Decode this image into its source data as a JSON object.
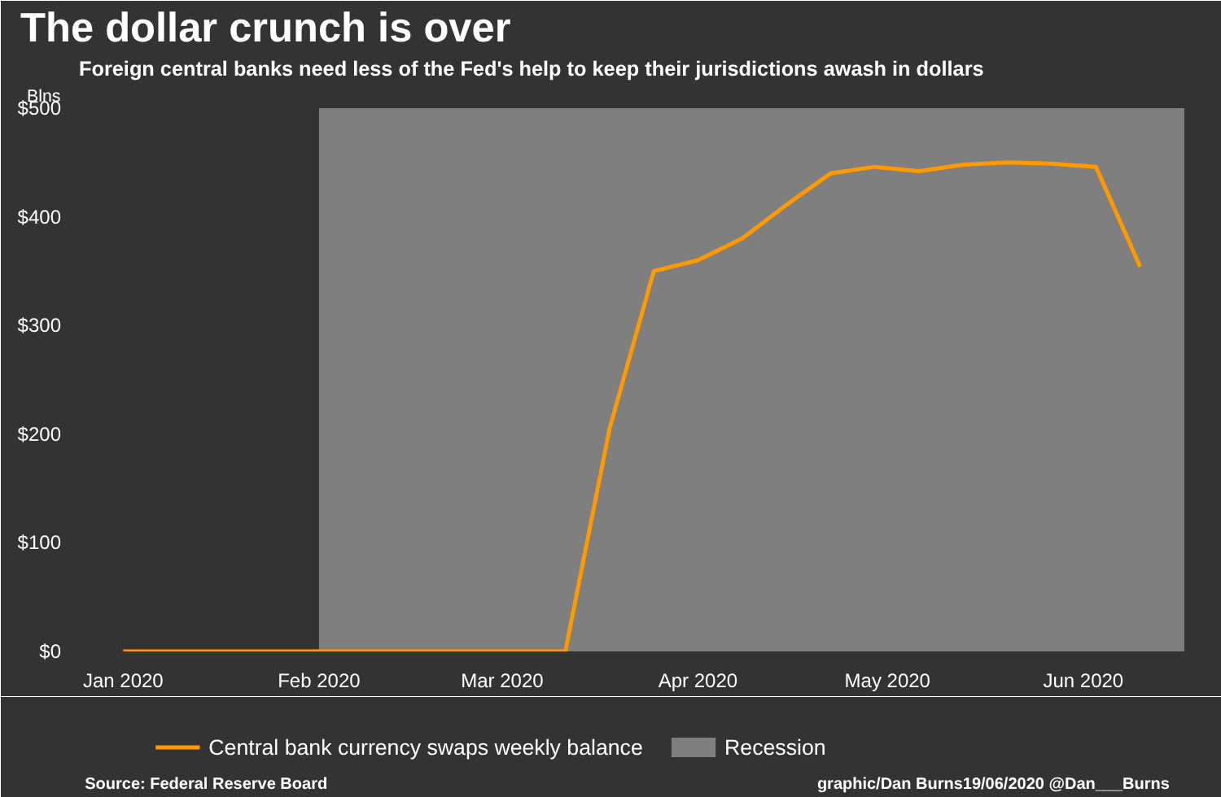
{
  "chart_data": {
    "type": "line",
    "title": "The dollar crunch is over",
    "subtitle": "Foreign central banks need less of the Fed's help to keep their jurisdictions awash in dollars",
    "ylabel": "Blns",
    "x": [
      "2020-01-01",
      "2020-01-08",
      "2020-01-15",
      "2020-01-22",
      "2020-01-29",
      "2020-02-05",
      "2020-02-12",
      "2020-02-19",
      "2020-02-26",
      "2020-03-04",
      "2020-03-11",
      "2020-03-18",
      "2020-03-25",
      "2020-04-01",
      "2020-04-08",
      "2020-04-15",
      "2020-04-22",
      "2020-04-29",
      "2020-05-06",
      "2020-05-13",
      "2020-05-20",
      "2020-05-27",
      "2020-06-03",
      "2020-06-10"
    ],
    "series": [
      {
        "name": "Central bank currency swaps weekly balance",
        "color": "#ff9900",
        "values": [
          0,
          0,
          0,
          0,
          0,
          0,
          0,
          0,
          0,
          0,
          0,
          205,
          350,
          360,
          380,
          411,
          440,
          446,
          442,
          448,
          450,
          449,
          446,
          354
        ]
      }
    ],
    "xlim": [
      "2019-12-25",
      "2020-06-17"
    ],
    "xticks": [
      {
        "value": "2020-01-01",
        "label": "Jan 2020"
      },
      {
        "value": "2020-02-01",
        "label": "Feb 2020"
      },
      {
        "value": "2020-03-01",
        "label": "Mar 2020"
      },
      {
        "value": "2020-04-01",
        "label": "Apr 2020"
      },
      {
        "value": "2020-05-01",
        "label": "May 2020"
      },
      {
        "value": "2020-06-01",
        "label": "Jun 2020"
      }
    ],
    "ylim": [
      0,
      500
    ],
    "yticks": [
      {
        "value": 0,
        "label": "$0"
      },
      {
        "value": 100,
        "label": "$100"
      },
      {
        "value": 200,
        "label": "$200"
      },
      {
        "value": 300,
        "label": "$300"
      },
      {
        "value": 400,
        "label": "$400"
      },
      {
        "value": 500,
        "label": "$500"
      }
    ],
    "bands": [
      {
        "axis": "x",
        "from": "2020-02-01",
        "to": "2020-06-17",
        "label": "Recession",
        "color": "#7f7f7f"
      }
    ],
    "legend": "bottom",
    "grid": false,
    "annotations": [
      "Source: Federal Reserve Board",
      "graphic/Dan Burns19/06/2020 @Dan___Burns"
    ]
  }
}
